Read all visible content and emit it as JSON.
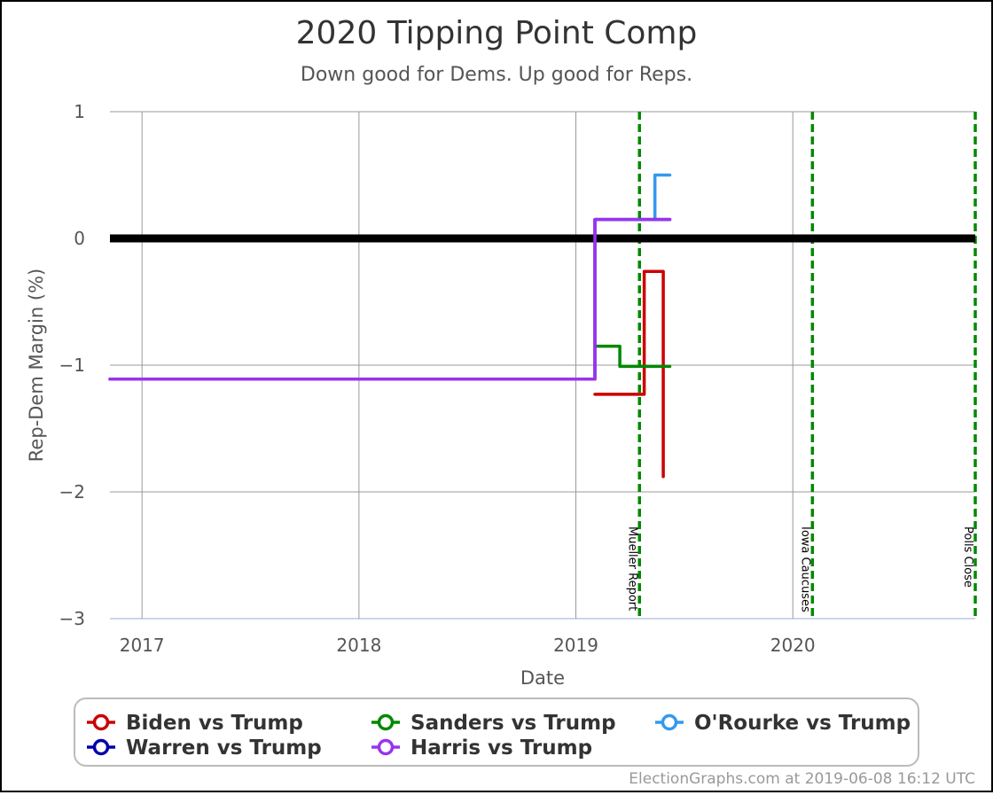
{
  "chart_data": {
    "type": "line",
    "title": "2020 Tipping Point Comp",
    "subtitle": "Down good for Dems. Up good for Reps.",
    "xlabel": "Date",
    "ylabel": "Rep-Dem Margin (%)",
    "xlim": [
      "2016-11-08",
      "2020-11-03"
    ],
    "ylim": [
      -3,
      1
    ],
    "x_ticks": [
      {
        "date": "2017-01-01",
        "label": "2017"
      },
      {
        "date": "2018-01-01",
        "label": "2018"
      },
      {
        "date": "2019-01-01",
        "label": "2019"
      },
      {
        "date": "2020-01-01",
        "label": "2020"
      }
    ],
    "y_ticks": [
      {
        "value": 1,
        "label": "1"
      },
      {
        "value": 0,
        "label": "0"
      },
      {
        "value": -1,
        "label": "−1"
      },
      {
        "value": -2,
        "label": "−2"
      },
      {
        "value": -3,
        "label": "−3"
      }
    ],
    "grid": true,
    "zero_line": 0,
    "legend_position": "bottom",
    "events": [
      {
        "date": "2019-04-18",
        "label": "Mueller Report"
      },
      {
        "date": "2020-02-03",
        "label": "Iowa Caucuses"
      },
      {
        "date": "2020-11-03",
        "label": "Polls Close"
      }
    ],
    "series": [
      {
        "name": "Biden vs Trump",
        "color": "#cc0000",
        "step": true,
        "points": [
          [
            "2019-02-02",
            -1.23
          ],
          [
            "2019-04-26",
            -0.26
          ],
          [
            "2019-05-28",
            -1.88
          ]
        ]
      },
      {
        "name": "Sanders vs Trump",
        "color": "#008800",
        "step": true,
        "points": [
          [
            "2019-02-02",
            -0.85
          ],
          [
            "2019-03-16",
            -1.01
          ],
          [
            "2019-06-08",
            -1.01
          ]
        ]
      },
      {
        "name": "O'Rourke vs Trump",
        "color": "#3399ee",
        "step": true,
        "points": [
          [
            "2019-05-12",
            0.15
          ],
          [
            "2019-05-14",
            0.5
          ],
          [
            "2019-06-08",
            0.5
          ]
        ]
      },
      {
        "name": "Warren vs Trump",
        "color": "#0000aa",
        "step": true,
        "points": [
          [
            "2016-11-08",
            -1.11
          ],
          [
            "2019-02-02",
            -1.11
          ],
          [
            "2019-02-02",
            0.15
          ],
          [
            "2019-06-08",
            0.15
          ]
        ]
      },
      {
        "name": "Harris vs Trump",
        "color": "#9933ee",
        "step": true,
        "points": [
          [
            "2016-11-08",
            -1.11
          ],
          [
            "2019-02-02",
            -1.11
          ],
          [
            "2019-02-02",
            0.15
          ],
          [
            "2019-06-08",
            0.15
          ]
        ]
      }
    ]
  },
  "legend_items": [
    {
      "name": "Biden vs Trump",
      "color": "#cc0000"
    },
    {
      "name": "Warren vs Trump",
      "color": "#0000aa"
    },
    {
      "name": "Sanders vs Trump",
      "color": "#008800"
    },
    {
      "name": "Harris vs Trump",
      "color": "#9933ee"
    },
    {
      "name": "O'Rourke vs Trump",
      "color": "#3399ee"
    }
  ],
  "credit": "ElectionGraphs.com at 2019-06-08 16:12 UTC"
}
